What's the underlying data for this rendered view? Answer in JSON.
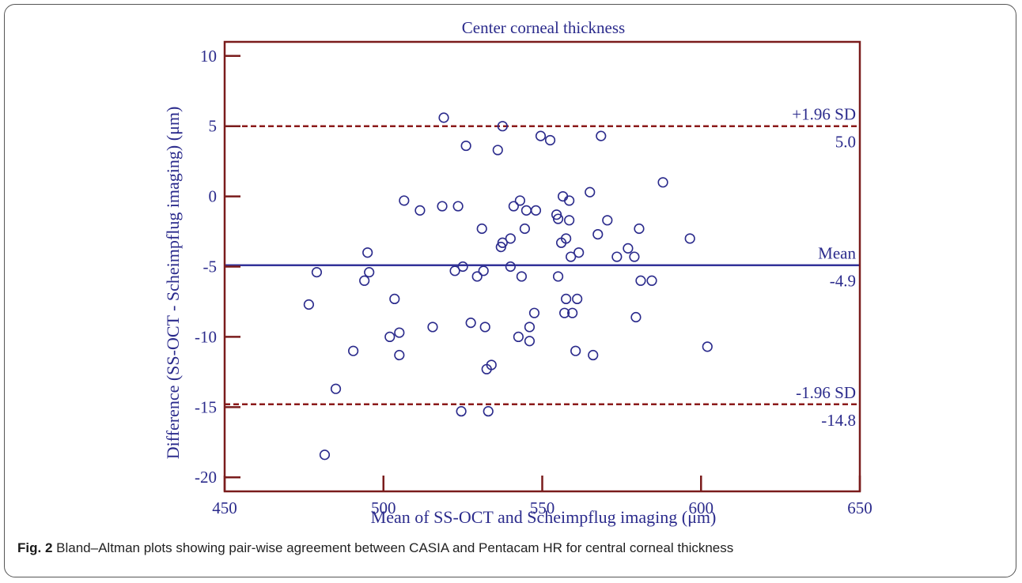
{
  "figure": {
    "caption_label": "Fig. 2",
    "caption_text": "Bland–Altman plots showing pair-wise agreement between CASIA and Pentacam HR for central corneal thickness"
  },
  "colors": {
    "axis": "#7a1c1c",
    "text": "#2b2b8c",
    "points": "#2b2b8c",
    "mean_line": "#33339a",
    "loa_line": "#8b1a1a"
  },
  "chart_data": {
    "type": "scatter",
    "title": "Center corneal thickness",
    "xlabel": "Mean of SS-OCT and Scheimpflug imaging (μm)",
    "ylabel": "Difference (SS-OCT - Scheimpflug imaging) (μm)",
    "xlim": [
      450,
      650
    ],
    "ylim": [
      -21,
      11
    ],
    "x_ticks": [
      450,
      500,
      550,
      600,
      650
    ],
    "y_ticks": [
      10,
      5,
      0,
      -5,
      -10,
      -15,
      -20
    ],
    "grid": false,
    "reference_lines": [
      {
        "label": "+1.96 SD",
        "value_label": "5.0",
        "y": 5.0,
        "style": "dashed"
      },
      {
        "label": "Mean",
        "value_label": "-4.9",
        "y": -4.9,
        "style": "solid"
      },
      {
        "label": "-1.96 SD",
        "value_label": "-14.8",
        "y": -14.8,
        "style": "dashed"
      }
    ],
    "points": [
      {
        "x": 476.5,
        "y": -7.7
      },
      {
        "x": 479,
        "y": -5.4
      },
      {
        "x": 481.5,
        "y": -18.4
      },
      {
        "x": 485,
        "y": -13.7
      },
      {
        "x": 490.5,
        "y": -11.0
      },
      {
        "x": 494,
        "y": -6.0
      },
      {
        "x": 495,
        "y": -4.0
      },
      {
        "x": 495.5,
        "y": -5.4
      },
      {
        "x": 502,
        "y": -10.0
      },
      {
        "x": 503.5,
        "y": -7.3
      },
      {
        "x": 505,
        "y": -9.7
      },
      {
        "x": 505,
        "y": -11.3
      },
      {
        "x": 506.5,
        "y": -0.3
      },
      {
        "x": 511.5,
        "y": -1.0
      },
      {
        "x": 515.5,
        "y": -9.3
      },
      {
        "x": 518.5,
        "y": -0.7
      },
      {
        "x": 519,
        "y": 5.6
      },
      {
        "x": 522.5,
        "y": -5.3
      },
      {
        "x": 523.5,
        "y": -0.7
      },
      {
        "x": 524.5,
        "y": -15.3
      },
      {
        "x": 525,
        "y": -5.0
      },
      {
        "x": 526,
        "y": 3.6
      },
      {
        "x": 527.5,
        "y": -9.0
      },
      {
        "x": 529.5,
        "y": -5.7
      },
      {
        "x": 531,
        "y": -2.3
      },
      {
        "x": 531.5,
        "y": -5.3
      },
      {
        "x": 532,
        "y": -9.3
      },
      {
        "x": 532.5,
        "y": -12.3
      },
      {
        "x": 533,
        "y": -15.3
      },
      {
        "x": 534,
        "y": -12.0
      },
      {
        "x": 536,
        "y": 3.3
      },
      {
        "x": 537,
        "y": -3.6
      },
      {
        "x": 537.5,
        "y": -3.3
      },
      {
        "x": 537.5,
        "y": 5.0
      },
      {
        "x": 540,
        "y": -5.0
      },
      {
        "x": 540,
        "y": -3.0
      },
      {
        "x": 541,
        "y": -0.7
      },
      {
        "x": 542.5,
        "y": -10.0
      },
      {
        "x": 543,
        "y": -0.3
      },
      {
        "x": 543.5,
        "y": -5.7
      },
      {
        "x": 544.5,
        "y": -2.3
      },
      {
        "x": 545,
        "y": -1.0
      },
      {
        "x": 546,
        "y": -9.3
      },
      {
        "x": 546,
        "y": -10.3
      },
      {
        "x": 547.5,
        "y": -8.3
      },
      {
        "x": 548,
        "y": -1.0
      },
      {
        "x": 549.5,
        "y": 4.3
      },
      {
        "x": 552.5,
        "y": 4.0
      },
      {
        "x": 554.5,
        "y": -1.3
      },
      {
        "x": 555,
        "y": -1.6
      },
      {
        "x": 555,
        "y": -5.7
      },
      {
        "x": 556,
        "y": -3.3
      },
      {
        "x": 556.5,
        "y": 0.0
      },
      {
        "x": 557,
        "y": -8.3
      },
      {
        "x": 557.5,
        "y": -7.3
      },
      {
        "x": 557.5,
        "y": -3.0
      },
      {
        "x": 558.5,
        "y": -1.7
      },
      {
        "x": 558.5,
        "y": -0.3
      },
      {
        "x": 559,
        "y": -4.3
      },
      {
        "x": 559.5,
        "y": -8.3
      },
      {
        "x": 560.5,
        "y": -11.0
      },
      {
        "x": 561,
        "y": -7.3
      },
      {
        "x": 561.5,
        "y": -4.0
      },
      {
        "x": 565,
        "y": 0.3
      },
      {
        "x": 566,
        "y": -11.3
      },
      {
        "x": 567.5,
        "y": -2.7
      },
      {
        "x": 568.5,
        "y": 4.3
      },
      {
        "x": 570.5,
        "y": -1.7
      },
      {
        "x": 573.5,
        "y": -4.3
      },
      {
        "x": 577,
        "y": -3.7
      },
      {
        "x": 579,
        "y": -4.3
      },
      {
        "x": 579.5,
        "y": -8.6
      },
      {
        "x": 580.5,
        "y": -2.3
      },
      {
        "x": 581,
        "y": -6.0
      },
      {
        "x": 584.5,
        "y": -6.0
      },
      {
        "x": 588,
        "y": 1.0
      },
      {
        "x": 596.5,
        "y": -3.0
      },
      {
        "x": 602,
        "y": -10.7
      }
    ]
  }
}
